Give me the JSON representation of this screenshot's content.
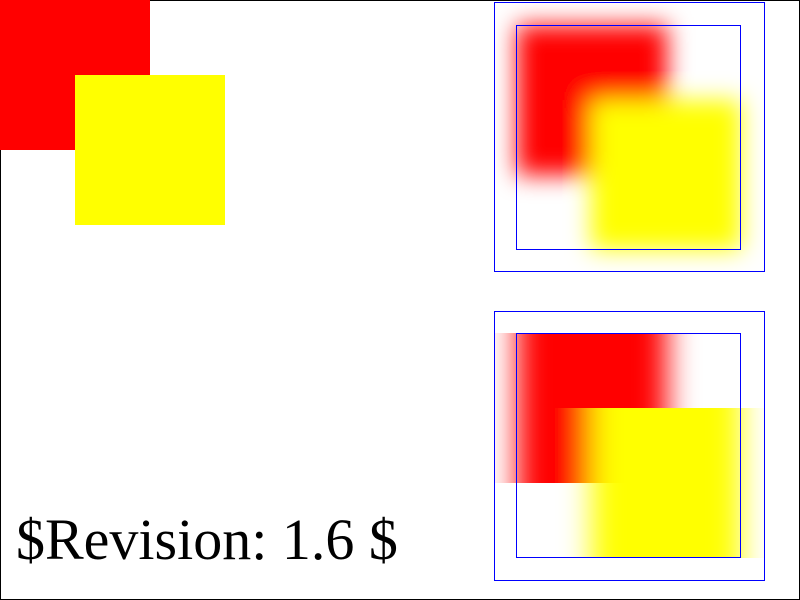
{
  "colors": {
    "frame": "#000000",
    "reference_outline": "#0000ff",
    "square_a": "#ff0000",
    "square_b": "#ffff00",
    "background": "#ffffff"
  },
  "filters": {
    "top_right": {
      "effect": "gaussian-blur",
      "std_deviation": "uniform"
    },
    "bottom_right": {
      "effect": "gaussian-blur",
      "std_deviation": "horizontal-only"
    }
  },
  "footer": {
    "revision": "$Revision: 1.6 $"
  }
}
